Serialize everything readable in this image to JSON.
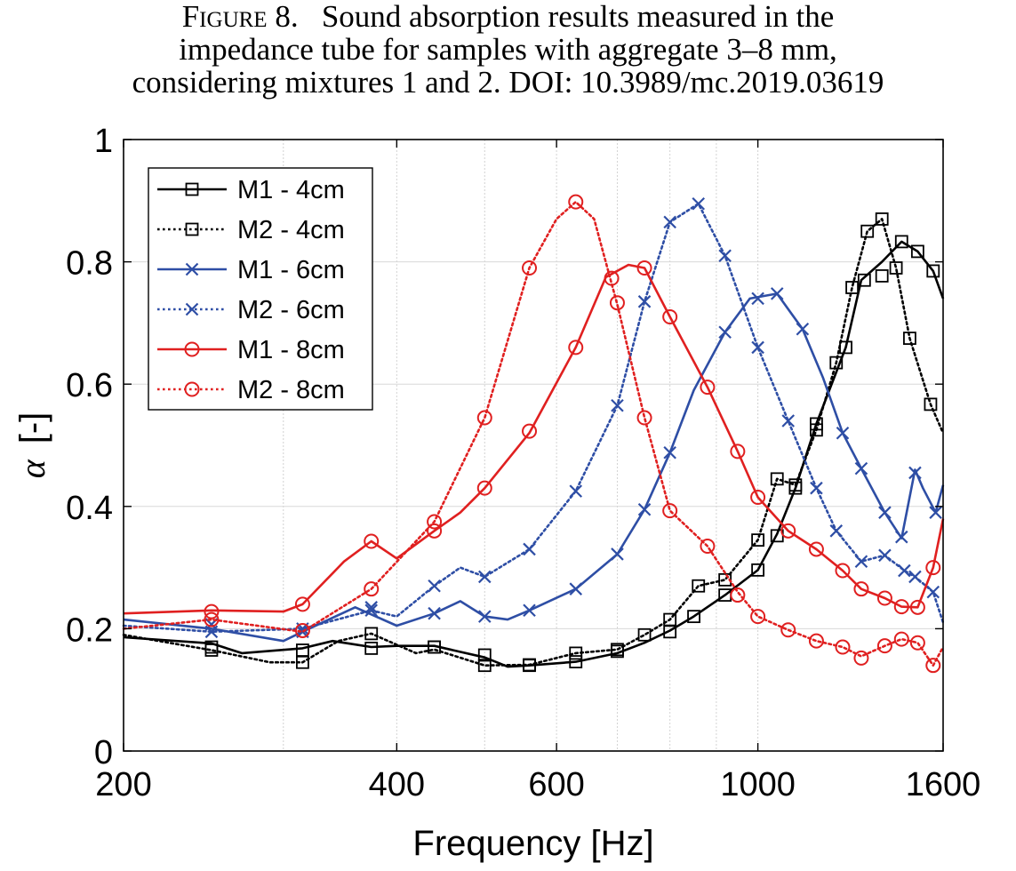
{
  "caption": {
    "figure_label": "Figure 8.",
    "line1": "Sound absorption results measured in the",
    "line2": "impedance tube for samples with aggregate 3–8 mm,",
    "line3": "considering mixtures 1 and 2.  DOI: 10.3989/mc.2019.03619"
  },
  "chart_data": {
    "type": "line",
    "xlabel": "Frequency [Hz]",
    "ylabel_symbol": "α",
    "ylabel_unit": "[-]",
    "xscale": "log",
    "xlim": [
      200,
      1600
    ],
    "ylim": [
      0,
      1
    ],
    "xticks": [
      200,
      400,
      600,
      1000,
      1600
    ],
    "xtick_labels": [
      "200",
      "400",
      "600",
      "1000",
      "1600"
    ],
    "yticks": [
      0,
      0.2,
      0.4,
      0.6,
      0.8,
      1
    ],
    "ytick_labels": [
      "0",
      "0.2",
      "0.4",
      "0.6",
      "0.8",
      "1"
    ],
    "grid": true,
    "legend_position": "top-left",
    "series": [
      {
        "name": "M1 - 4cm",
        "color": "#000000",
        "line": "solid",
        "marker": "square",
        "points": [
          [
            200,
            0.186
          ],
          [
            250,
            0.176
          ],
          [
            270,
            0.16
          ],
          [
            315,
            0.168
          ],
          [
            340,
            0.18
          ],
          [
            375,
            0.17
          ],
          [
            400,
            0.172
          ],
          [
            440,
            0.172
          ],
          [
            500,
            0.153
          ],
          [
            530,
            0.138
          ],
          [
            560,
            0.14
          ],
          [
            630,
            0.146
          ],
          [
            700,
            0.16
          ],
          [
            750,
            0.177
          ],
          [
            800,
            0.197
          ],
          [
            850,
            0.22
          ],
          [
            920,
            0.255
          ],
          [
            1000,
            0.296
          ],
          [
            1050,
            0.355
          ],
          [
            1100,
            0.43
          ],
          [
            1160,
            0.535
          ],
          [
            1250,
            0.66
          ],
          [
            1300,
            0.77
          ],
          [
            1370,
            0.8
          ],
          [
            1440,
            0.833
          ],
          [
            1500,
            0.817
          ],
          [
            1560,
            0.785
          ],
          [
            1600,
            0.74
          ]
        ],
        "markers": [
          [
            250,
            0.17
          ],
          [
            315,
            0.165
          ],
          [
            375,
            0.168
          ],
          [
            440,
            0.17
          ],
          [
            500,
            0.157
          ],
          [
            560,
            0.141
          ],
          [
            630,
            0.146
          ],
          [
            700,
            0.163
          ],
          [
            800,
            0.195
          ],
          [
            850,
            0.22
          ],
          [
            920,
            0.255
          ],
          [
            1000,
            0.296
          ],
          [
            1050,
            0.352
          ],
          [
            1100,
            0.43
          ],
          [
            1160,
            0.535
          ],
          [
            1250,
            0.66
          ],
          [
            1310,
            0.77
          ],
          [
            1370,
            0.777
          ],
          [
            1440,
            0.833
          ],
          [
            1500,
            0.817
          ],
          [
            1560,
            0.785
          ]
        ]
      },
      {
        "name": "M2 - 4cm",
        "color": "#000000",
        "line": "dotted",
        "marker": "square",
        "points": [
          [
            200,
            0.19
          ],
          [
            250,
            0.165
          ],
          [
            290,
            0.145
          ],
          [
            315,
            0.145
          ],
          [
            345,
            0.18
          ],
          [
            375,
            0.192
          ],
          [
            420,
            0.16
          ],
          [
            440,
            0.166
          ],
          [
            500,
            0.14
          ],
          [
            560,
            0.141
          ],
          [
            630,
            0.16
          ],
          [
            700,
            0.166
          ],
          [
            750,
            0.19
          ],
          [
            800,
            0.215
          ],
          [
            860,
            0.27
          ],
          [
            920,
            0.28
          ],
          [
            1000,
            0.345
          ],
          [
            1050,
            0.445
          ],
          [
            1100,
            0.435
          ],
          [
            1160,
            0.525
          ],
          [
            1220,
            0.635
          ],
          [
            1270,
            0.758
          ],
          [
            1320,
            0.85
          ],
          [
            1370,
            0.87
          ],
          [
            1420,
            0.79
          ],
          [
            1470,
            0.675
          ],
          [
            1550,
            0.567
          ],
          [
            1600,
            0.52
          ]
        ],
        "markers": [
          [
            250,
            0.165
          ],
          [
            315,
            0.145
          ],
          [
            375,
            0.192
          ],
          [
            440,
            0.17
          ],
          [
            500,
            0.14
          ],
          [
            560,
            0.14
          ],
          [
            630,
            0.16
          ],
          [
            700,
            0.166
          ],
          [
            750,
            0.19
          ],
          [
            800,
            0.215
          ],
          [
            860,
            0.27
          ],
          [
            920,
            0.28
          ],
          [
            1000,
            0.345
          ],
          [
            1050,
            0.445
          ],
          [
            1100,
            0.435
          ],
          [
            1160,
            0.525
          ],
          [
            1220,
            0.635
          ],
          [
            1270,
            0.758
          ],
          [
            1320,
            0.85
          ],
          [
            1370,
            0.87
          ],
          [
            1420,
            0.79
          ],
          [
            1470,
            0.675
          ],
          [
            1550,
            0.567
          ]
        ]
      },
      {
        "name": "M1 - 6cm",
        "color": "#2e4ea5",
        "line": "solid",
        "marker": "x",
        "points": [
          [
            200,
            0.215
          ],
          [
            250,
            0.2
          ],
          [
            300,
            0.18
          ],
          [
            315,
            0.195
          ],
          [
            360,
            0.235
          ],
          [
            400,
            0.205
          ],
          [
            440,
            0.225
          ],
          [
            470,
            0.245
          ],
          [
            500,
            0.22
          ],
          [
            530,
            0.215
          ],
          [
            560,
            0.23
          ],
          [
            630,
            0.265
          ],
          [
            700,
            0.322
          ],
          [
            750,
            0.395
          ],
          [
            800,
            0.488
          ],
          [
            850,
            0.59
          ],
          [
            920,
            0.685
          ],
          [
            980,
            0.74
          ],
          [
            1050,
            0.748
          ],
          [
            1120,
            0.69
          ],
          [
            1180,
            0.61
          ],
          [
            1240,
            0.52
          ],
          [
            1300,
            0.462
          ],
          [
            1380,
            0.39
          ],
          [
            1440,
            0.348
          ],
          [
            1490,
            0.46
          ],
          [
            1520,
            0.43
          ],
          [
            1570,
            0.39
          ],
          [
            1600,
            0.435
          ]
        ],
        "markers": [
          [
            250,
            0.207
          ],
          [
            315,
            0.195
          ],
          [
            375,
            0.235
          ],
          [
            440,
            0.225
          ],
          [
            500,
            0.22
          ],
          [
            560,
            0.23
          ],
          [
            630,
            0.265
          ],
          [
            700,
            0.322
          ],
          [
            750,
            0.395
          ],
          [
            800,
            0.488
          ],
          [
            920,
            0.685
          ],
          [
            1000,
            0.74
          ],
          [
            1050,
            0.748
          ],
          [
            1120,
            0.69
          ],
          [
            1240,
            0.52
          ],
          [
            1300,
            0.462
          ],
          [
            1380,
            0.39
          ],
          [
            1440,
            0.35
          ],
          [
            1490,
            0.455
          ],
          [
            1570,
            0.39
          ]
        ]
      },
      {
        "name": "M2 - 6cm",
        "color": "#2e4ea5",
        "line": "dotted",
        "marker": "x",
        "points": [
          [
            200,
            0.205
          ],
          [
            250,
            0.195
          ],
          [
            315,
            0.2
          ],
          [
            375,
            0.23
          ],
          [
            400,
            0.22
          ],
          [
            440,
            0.27
          ],
          [
            470,
            0.3
          ],
          [
            500,
            0.285
          ],
          [
            560,
            0.33
          ],
          [
            630,
            0.425
          ],
          [
            700,
            0.565
          ],
          [
            750,
            0.735
          ],
          [
            800,
            0.865
          ],
          [
            860,
            0.895
          ],
          [
            920,
            0.81
          ],
          [
            1000,
            0.66
          ],
          [
            1080,
            0.54
          ],
          [
            1160,
            0.43
          ],
          [
            1220,
            0.36
          ],
          [
            1300,
            0.31
          ],
          [
            1380,
            0.32
          ],
          [
            1450,
            0.295
          ],
          [
            1490,
            0.285
          ],
          [
            1560,
            0.26
          ],
          [
            1600,
            0.21
          ]
        ],
        "markers": [
          [
            250,
            0.195
          ],
          [
            315,
            0.2
          ],
          [
            375,
            0.23
          ],
          [
            440,
            0.27
          ],
          [
            500,
            0.285
          ],
          [
            560,
            0.33
          ],
          [
            630,
            0.425
          ],
          [
            700,
            0.565
          ],
          [
            750,
            0.735
          ],
          [
            800,
            0.865
          ],
          [
            860,
            0.895
          ],
          [
            920,
            0.81
          ],
          [
            1000,
            0.66
          ],
          [
            1080,
            0.54
          ],
          [
            1160,
            0.43
          ],
          [
            1220,
            0.36
          ],
          [
            1300,
            0.31
          ],
          [
            1380,
            0.32
          ],
          [
            1450,
            0.295
          ],
          [
            1490,
            0.285
          ],
          [
            1560,
            0.26
          ]
        ]
      },
      {
        "name": "M1 - 8cm",
        "color": "#e02020",
        "line": "solid",
        "marker": "circle",
        "points": [
          [
            200,
            0.225
          ],
          [
            250,
            0.23
          ],
          [
            300,
            0.228
          ],
          [
            315,
            0.24
          ],
          [
            350,
            0.31
          ],
          [
            375,
            0.343
          ],
          [
            400,
            0.315
          ],
          [
            440,
            0.36
          ],
          [
            470,
            0.39
          ],
          [
            500,
            0.43
          ],
          [
            560,
            0.52
          ],
          [
            630,
            0.66
          ],
          [
            680,
            0.775
          ],
          [
            720,
            0.795
          ],
          [
            750,
            0.79
          ],
          [
            800,
            0.71
          ],
          [
            880,
            0.595
          ],
          [
            950,
            0.49
          ],
          [
            1000,
            0.415
          ],
          [
            1080,
            0.36
          ],
          [
            1160,
            0.33
          ],
          [
            1240,
            0.295
          ],
          [
            1300,
            0.265
          ],
          [
            1380,
            0.25
          ],
          [
            1440,
            0.236
          ],
          [
            1500,
            0.235
          ],
          [
            1560,
            0.3
          ],
          [
            1600,
            0.38
          ]
        ],
        "markers": [
          [
            250,
            0.228
          ],
          [
            315,
            0.24
          ],
          [
            375,
            0.343
          ],
          [
            440,
            0.36
          ],
          [
            500,
            0.43
          ],
          [
            560,
            0.523
          ],
          [
            630,
            0.66
          ],
          [
            690,
            0.773
          ],
          [
            750,
            0.79
          ],
          [
            800,
            0.71
          ],
          [
            880,
            0.595
          ],
          [
            950,
            0.49
          ],
          [
            1000,
            0.415
          ],
          [
            1080,
            0.36
          ],
          [
            1160,
            0.33
          ],
          [
            1240,
            0.295
          ],
          [
            1300,
            0.265
          ],
          [
            1380,
            0.25
          ],
          [
            1440,
            0.236
          ],
          [
            1500,
            0.235
          ],
          [
            1560,
            0.3
          ]
        ]
      },
      {
        "name": "M2 - 8cm",
        "color": "#e02020",
        "line": "dotted",
        "marker": "circle",
        "points": [
          [
            200,
            0.2
          ],
          [
            250,
            0.215
          ],
          [
            315,
            0.195
          ],
          [
            375,
            0.265
          ],
          [
            440,
            0.375
          ],
          [
            500,
            0.545
          ],
          [
            560,
            0.79
          ],
          [
            600,
            0.87
          ],
          [
            630,
            0.898
          ],
          [
            660,
            0.87
          ],
          [
            700,
            0.73
          ],
          [
            750,
            0.545
          ],
          [
            800,
            0.393
          ],
          [
            880,
            0.335
          ],
          [
            950,
            0.26
          ],
          [
            1000,
            0.22
          ],
          [
            1080,
            0.198
          ],
          [
            1160,
            0.18
          ],
          [
            1240,
            0.17
          ],
          [
            1300,
            0.155
          ],
          [
            1380,
            0.172
          ],
          [
            1440,
            0.183
          ],
          [
            1500,
            0.177
          ],
          [
            1560,
            0.14
          ],
          [
            1600,
            0.17
          ]
        ],
        "markers": [
          [
            250,
            0.215
          ],
          [
            315,
            0.197
          ],
          [
            375,
            0.265
          ],
          [
            440,
            0.375
          ],
          [
            500,
            0.545
          ],
          [
            560,
            0.79
          ],
          [
            630,
            0.898
          ],
          [
            700,
            0.733
          ],
          [
            750,
            0.545
          ],
          [
            800,
            0.393
          ],
          [
            880,
            0.335
          ],
          [
            950,
            0.255
          ],
          [
            1000,
            0.22
          ],
          [
            1080,
            0.198
          ],
          [
            1160,
            0.18
          ],
          [
            1240,
            0.17
          ],
          [
            1300,
            0.152
          ],
          [
            1380,
            0.172
          ],
          [
            1440,
            0.183
          ],
          [
            1500,
            0.177
          ],
          [
            1560,
            0.14
          ]
        ]
      }
    ]
  }
}
